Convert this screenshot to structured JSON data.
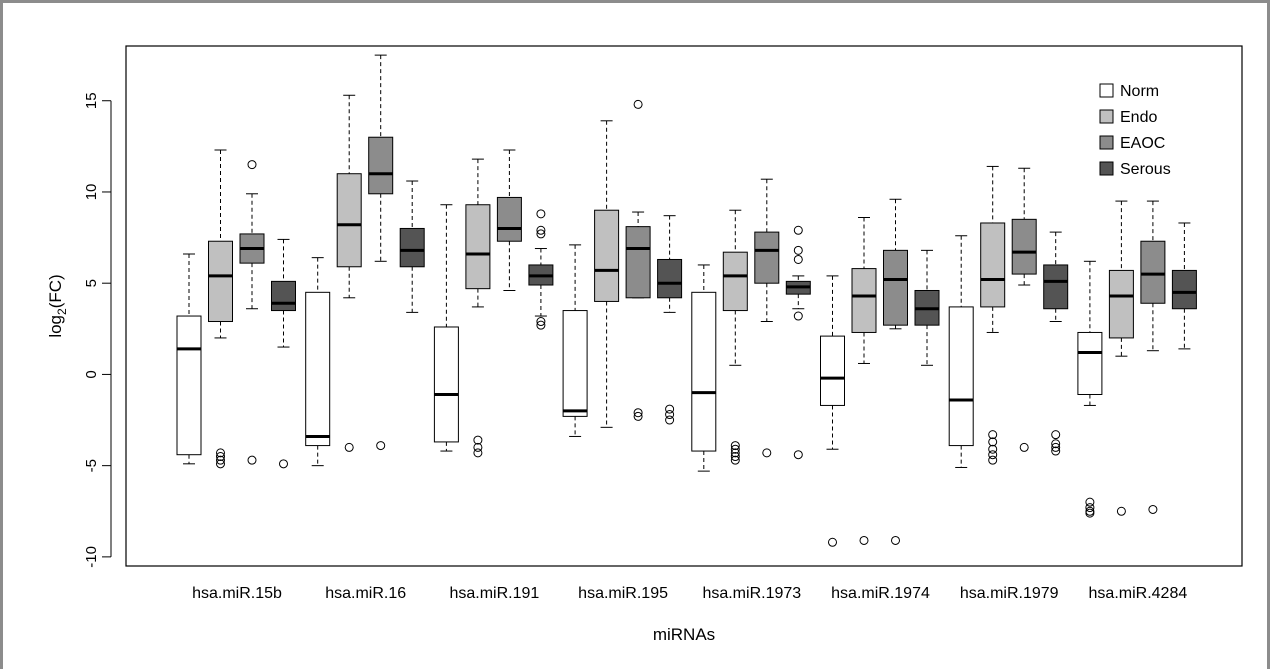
{
  "chart_data": {
    "type": "box",
    "xlabel": "miRNAs",
    "ylabel": "log2(FC)",
    "ylabel_main": "log",
    "ylabel_sub": "2",
    "ylabel_tail": "(FC)",
    "ylim": [
      -10.5,
      18
    ],
    "yticks": [
      -10,
      -5,
      0,
      5,
      10,
      15
    ],
    "legend_position": "top-right",
    "groups": [
      {
        "name": "Norm",
        "color": "#ffffff"
      },
      {
        "name": "Endo",
        "color": "#c0c0c0"
      },
      {
        "name": "EAOC",
        "color": "#8c8c8c"
      },
      {
        "name": "Serous",
        "color": "#545454"
      }
    ],
    "categories": [
      {
        "label": "hsa.miR.15b",
        "boxes": [
          {
            "group": "Norm",
            "min": -4.9,
            "q1": -4.4,
            "median": 1.4,
            "q3": 3.2,
            "max": 6.6,
            "outliers": []
          },
          {
            "group": "Endo",
            "min": 2.0,
            "q1": 2.9,
            "median": 5.4,
            "q3": 7.3,
            "max": 12.3,
            "outliers": [
              -4.3,
              -4.5,
              -4.7,
              -4.9
            ]
          },
          {
            "group": "EAOC",
            "min": 3.6,
            "q1": 6.1,
            "median": 6.9,
            "q3": 7.7,
            "max": 9.9,
            "outliers": [
              11.5,
              -4.7
            ]
          },
          {
            "group": "Serous",
            "min": 1.5,
            "q1": 3.5,
            "median": 3.9,
            "q3": 5.1,
            "max": 7.4,
            "outliers": [
              -4.9
            ]
          }
        ]
      },
      {
        "label": "hsa.miR.16",
        "boxes": [
          {
            "group": "Norm",
            "min": -5.0,
            "q1": -3.9,
            "median": -3.4,
            "q3": 4.5,
            "max": 6.4,
            "outliers": []
          },
          {
            "group": "Endo",
            "min": 4.2,
            "q1": 5.9,
            "median": 8.2,
            "q3": 11.0,
            "max": 15.3,
            "outliers": [
              -4.0
            ]
          },
          {
            "group": "EAOC",
            "min": 6.2,
            "q1": 9.9,
            "median": 11.0,
            "q3": 13.0,
            "max": 17.5,
            "outliers": [
              -3.9
            ]
          },
          {
            "group": "Serous",
            "min": 3.4,
            "q1": 5.9,
            "median": 6.8,
            "q3": 8.0,
            "max": 10.6,
            "outliers": []
          }
        ]
      },
      {
        "label": "hsa.miR.191",
        "boxes": [
          {
            "group": "Norm",
            "min": -4.2,
            "q1": -3.7,
            "median": -1.1,
            "q3": 2.6,
            "max": 9.3,
            "outliers": []
          },
          {
            "group": "Endo",
            "min": 3.7,
            "q1": 4.7,
            "median": 6.6,
            "q3": 9.3,
            "max": 11.8,
            "outliers": [
              -3.6,
              -4.0,
              -4.3
            ]
          },
          {
            "group": "EAOC",
            "min": 4.6,
            "q1": 7.3,
            "median": 8.0,
            "q3": 9.7,
            "max": 12.3,
            "outliers": []
          },
          {
            "group": "Serous",
            "min": 3.2,
            "q1": 4.9,
            "median": 5.4,
            "q3": 6.0,
            "max": 6.9,
            "outliers": [
              8.8,
              7.9,
              7.7,
              2.9,
              2.7
            ]
          }
        ]
      },
      {
        "label": "hsa.miR.195",
        "boxes": [
          {
            "group": "Norm",
            "min": -3.4,
            "q1": -2.3,
            "median": -2.0,
            "q3": 3.5,
            "max": 7.1,
            "outliers": []
          },
          {
            "group": "Endo",
            "min": -2.9,
            "q1": 4.0,
            "median": 5.7,
            "q3": 9.0,
            "max": 13.9,
            "outliers": []
          },
          {
            "group": "EAOC",
            "min": 4.2,
            "q1": 4.2,
            "median": 6.9,
            "q3": 8.1,
            "max": 8.9,
            "outliers": [
              14.8,
              -2.1,
              -2.3
            ]
          },
          {
            "group": "Serous",
            "min": 3.4,
            "q1": 4.2,
            "median": 5.0,
            "q3": 6.3,
            "max": 8.7,
            "outliers": [
              -1.9,
              -2.2,
              -2.5
            ]
          }
        ]
      },
      {
        "label": "hsa.miR.1973",
        "boxes": [
          {
            "group": "Norm",
            "min": -5.3,
            "q1": -4.2,
            "median": -1.0,
            "q3": 4.5,
            "max": 6.0,
            "outliers": []
          },
          {
            "group": "Endo",
            "min": 0.5,
            "q1": 3.5,
            "median": 5.4,
            "q3": 6.7,
            "max": 9.0,
            "outliers": [
              -3.9,
              -4.1,
              -4.3,
              -4.5,
              -4.7
            ]
          },
          {
            "group": "EAOC",
            "min": 2.9,
            "q1": 5.0,
            "median": 6.8,
            "q3": 7.8,
            "max": 10.7,
            "outliers": [
              -4.3
            ]
          },
          {
            "group": "Serous",
            "min": 3.6,
            "q1": 4.4,
            "median": 4.8,
            "q3": 5.1,
            "max": 5.4,
            "outliers": [
              7.9,
              6.8,
              6.3,
              3.2,
              -4.4
            ]
          }
        ]
      },
      {
        "label": "hsa.miR.1974",
        "boxes": [
          {
            "group": "Norm",
            "min": -4.1,
            "q1": -1.7,
            "median": -0.2,
            "q3": 2.1,
            "max": 5.4,
            "outliers": [
              -9.2
            ]
          },
          {
            "group": "Endo",
            "min": 0.6,
            "q1": 2.3,
            "median": 4.3,
            "q3": 5.8,
            "max": 8.6,
            "outliers": [
              -9.1
            ]
          },
          {
            "group": "EAOC",
            "min": 2.5,
            "q1": 2.7,
            "median": 5.2,
            "q3": 6.8,
            "max": 9.6,
            "outliers": [
              -9.1
            ]
          },
          {
            "group": "Serous",
            "min": 0.5,
            "q1": 2.7,
            "median": 3.6,
            "q3": 4.6,
            "max": 6.8,
            "outliers": []
          }
        ]
      },
      {
        "label": "hsa.miR.1979",
        "boxes": [
          {
            "group": "Norm",
            "min": -5.1,
            "q1": -3.9,
            "median": -1.4,
            "q3": 3.7,
            "max": 7.6,
            "outliers": []
          },
          {
            "group": "Endo",
            "min": 2.3,
            "q1": 3.7,
            "median": 5.2,
            "q3": 8.3,
            "max": 11.4,
            "outliers": [
              -3.3,
              -3.7,
              -4.1,
              -4.4,
              -4.7
            ]
          },
          {
            "group": "EAOC",
            "min": 4.9,
            "q1": 5.5,
            "median": 6.7,
            "q3": 8.5,
            "max": 11.3,
            "outliers": [
              -4.0
            ]
          },
          {
            "group": "Serous",
            "min": 2.9,
            "q1": 3.6,
            "median": 5.1,
            "q3": 6.0,
            "max": 7.8,
            "outliers": [
              -3.3,
              -3.8,
              -4.0,
              -4.2
            ]
          }
        ]
      },
      {
        "label": "hsa.miR.4284",
        "boxes": [
          {
            "group": "Norm",
            "min": -1.7,
            "q1": -1.1,
            "median": 1.2,
            "q3": 2.3,
            "max": 6.2,
            "outliers": [
              -7.0,
              -7.3,
              -7.5,
              -7.6
            ]
          },
          {
            "group": "Endo",
            "min": 1.0,
            "q1": 2.0,
            "median": 4.3,
            "q3": 5.7,
            "max": 9.5,
            "outliers": [
              -7.5
            ]
          },
          {
            "group": "EAOC",
            "min": 1.3,
            "q1": 3.9,
            "median": 5.5,
            "q3": 7.3,
            "max": 9.5,
            "outliers": [
              -7.4
            ]
          },
          {
            "group": "Serous",
            "min": 1.4,
            "q1": 3.6,
            "median": 4.5,
            "q3": 5.7,
            "max": 8.3,
            "outliers": []
          }
        ]
      }
    ]
  }
}
